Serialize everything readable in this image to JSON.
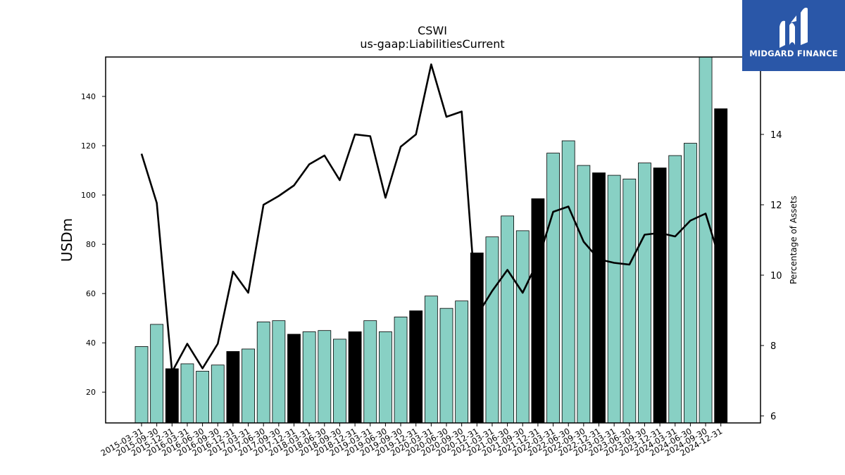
{
  "chart_data": {
    "type": "bar",
    "title": "CSWI",
    "subtitle": "us-gaap:LiabilitiesCurrent",
    "ylabel": "USDm",
    "y2label": "Percentage of Assets",
    "ylim": [
      7.5,
      156
    ],
    "y2lim": [
      5.8,
      16.2
    ],
    "yticks": [
      20,
      40,
      60,
      80,
      100,
      120,
      140
    ],
    "y2ticks": [
      6,
      8,
      10,
      12,
      14
    ],
    "grid": false,
    "categories": [
      "2015-03-31",
      "2015-09-30",
      "2015-12-31",
      "2016-03-31",
      "2016-06-30",
      "2016-09-30",
      "2016-12-31",
      "2017-03-31",
      "2017-06-30",
      "2017-09-30",
      "2017-12-31",
      "2018-03-31",
      "2018-06-30",
      "2018-09-30",
      "2018-12-31",
      "2019-03-31",
      "2019-06-30",
      "2019-09-30",
      "2019-12-31",
      "2020-03-31",
      "2020-06-30",
      "2020-09-30",
      "2020-12-31",
      "2021-03-31",
      "2021-06-30",
      "2021-09-30",
      "2021-12-31",
      "2022-03-31",
      "2022-06-30",
      "2022-09-30",
      "2022-12-31",
      "2023-03-31",
      "2023-06-30",
      "2023-09-30",
      "2023-12-31",
      "2024-03-31",
      "2024-06-30",
      "2024-09-30",
      "2024-12-31"
    ],
    "series": [
      {
        "type": "bar",
        "axis": "left",
        "values": [
          38.5,
          47.5,
          29.5,
          31.5,
          28.5,
          31,
          36.5,
          37.5,
          48.5,
          49,
          43.5,
          44.5,
          45,
          41.5,
          44.5,
          49,
          44.5,
          50.5,
          53,
          59,
          54,
          57,
          76.5,
          83,
          91.5,
          85.5,
          98.5,
          117,
          122,
          112,
          109,
          108,
          106.5,
          113,
          111,
          116,
          121,
          157,
          135
        ],
        "highlight": [
          false,
          false,
          true,
          false,
          false,
          false,
          true,
          false,
          false,
          false,
          true,
          false,
          false,
          false,
          true,
          false,
          false,
          false,
          true,
          false,
          false,
          false,
          true,
          false,
          false,
          false,
          true,
          false,
          false,
          false,
          true,
          false,
          false,
          false,
          true,
          false,
          false,
          false,
          true
        ]
      },
      {
        "type": "line",
        "axis": "right",
        "values": [
          13.45,
          12.05,
          7.25,
          8.05,
          7.35,
          8.05,
          10.1,
          9.5,
          12.0,
          12.25,
          12.55,
          13.15,
          13.4,
          12.7,
          14.0,
          13.95,
          12.2,
          13.65,
          14.0,
          15.99,
          14.5,
          14.65,
          8.85,
          9.55,
          10.15,
          9.5,
          10.4,
          11.8,
          11.95,
          10.95,
          10.45,
          10.35,
          10.3,
          11.15,
          11.2,
          11.1,
          11.55,
          11.75,
          10.35
        ]
      }
    ],
    "colors": {
      "bar": "#88d0c4",
      "bar_highlight": "#000000",
      "line": "#000000"
    }
  },
  "logo": {
    "text": "MIDGARD FINANCE",
    "background": "#2a57a8"
  }
}
